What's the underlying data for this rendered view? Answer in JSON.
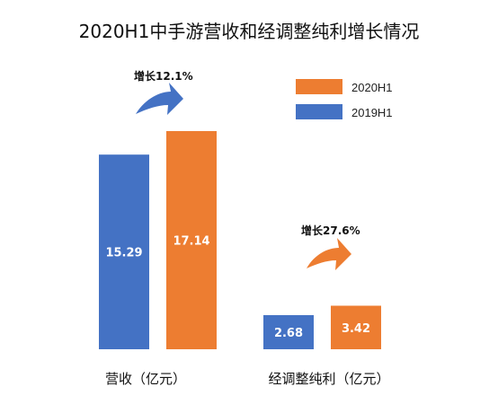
{
  "chart_data": {
    "type": "bar",
    "title": "2020H1中手游营收和经调整纯利增长情况",
    "categories": [
      "营收（亿元）",
      "经调整纯利（亿元）"
    ],
    "series": [
      {
        "name": "2019H1",
        "values": [
          15.29,
          2.68
        ],
        "labels": [
          "15.29",
          "2.68"
        ],
        "color": "#4472C4"
      },
      {
        "name": "2020H1",
        "values": [
          17.14,
          3.42
        ],
        "labels": [
          "17.14",
          "3.42"
        ],
        "color": "#ED7D31"
      }
    ],
    "annotations": [
      "增长12.1%",
      "增长27.6%"
    ],
    "legend_position": "top-right",
    "grid": false,
    "arrow_color": "#4472C4"
  }
}
